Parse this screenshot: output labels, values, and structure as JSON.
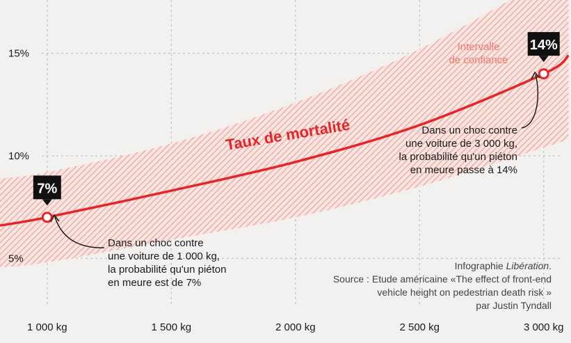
{
  "chart_data": {
    "type": "line",
    "x": [
      1000,
      1500,
      2000,
      2500,
      3000,
      3100
    ],
    "series": [
      {
        "name": "Taux de mortalité",
        "values": [
          7.0,
          8.3,
          9.7,
          11.5,
          14.0,
          14.9
        ]
      }
    ],
    "confidence_interval": {
      "label": [
        "Intervalle",
        "de confiance"
      ],
      "lower": [
        4.8,
        5.9,
        7.0,
        8.5,
        10.4,
        10.8
      ],
      "upper": [
        9.2,
        10.6,
        12.6,
        15.2,
        18.5,
        19.0
      ]
    },
    "x_tick_labels": [
      "1 000 kg",
      "1 500 kg",
      "2 000 kg",
      "2 500 kg",
      "3 000 kg"
    ],
    "x_ticks": [
      1000,
      1500,
      2000,
      2500,
      3000
    ],
    "y_tick_labels": [
      "5%",
      "10%",
      "15%"
    ],
    "y_ticks": [
      5,
      10,
      15
    ],
    "xlim": [
      810,
      3110
    ],
    "ylim": [
      2.6,
      17.6
    ],
    "grid": true,
    "highlights": [
      {
        "x": 1000,
        "y": 7,
        "badge": "7%"
      },
      {
        "x": 3000,
        "y": 14,
        "badge": "14%"
      }
    ],
    "annotations": [
      {
        "lines": [
          "Dans un choc contre",
          "une voiture de 1 000 kg,",
          "la probabilité qu'un piéton",
          "en meure est de 7%"
        ]
      },
      {
        "lines": [
          "Dans un choc contre",
          "une voiture de 3 000 kg,",
          "la probabilité qu'un piéton",
          "en meure passe à 14%"
        ]
      }
    ],
    "credits": {
      "infographie_prefix": "Infographie ",
      "infographie_name": "Libération",
      "infographie_suffix": ".",
      "source_lines": [
        "Source : Etude américaine «The effect of front-end",
        "vehicle height on pedestrian death risk »",
        "par Justin Tyndall"
      ]
    },
    "colors": {
      "line": "#e3262a",
      "ci": "#f2a39c",
      "badge": "#111111",
      "grid": "#b8b8b8"
    }
  }
}
